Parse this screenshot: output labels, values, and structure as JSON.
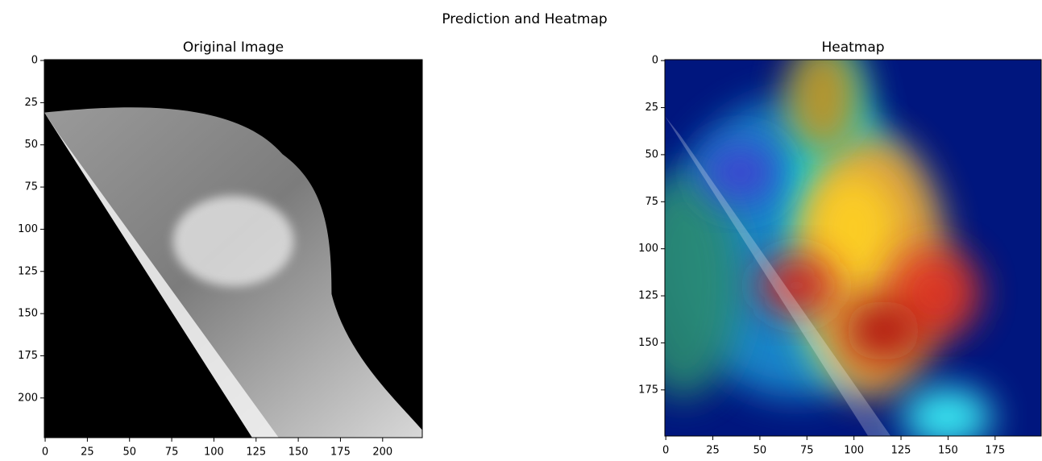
{
  "title": "Prediction and Heatmap",
  "chart_data": [
    {
      "type": "image",
      "title": "Original Image",
      "xlim": [
        -0.5,
        223.5
      ],
      "ylim": [
        223.5,
        -0.5
      ],
      "xticks": [
        0,
        25,
        50,
        75,
        100,
        125,
        150,
        175,
        200
      ],
      "yticks": [
        0,
        25,
        50,
        75,
        100,
        125,
        150,
        175,
        200
      ]
    },
    {
      "type": "image",
      "title": "Heatmap",
      "xlim": [
        -0.5,
        199.5
      ],
      "ylim": [
        199.5,
        -0.5
      ],
      "xticks": [
        0,
        25,
        50,
        75,
        100,
        125,
        150,
        175
      ],
      "yticks": [
        0,
        25,
        50,
        75,
        100,
        125,
        150,
        175
      ]
    }
  ]
}
